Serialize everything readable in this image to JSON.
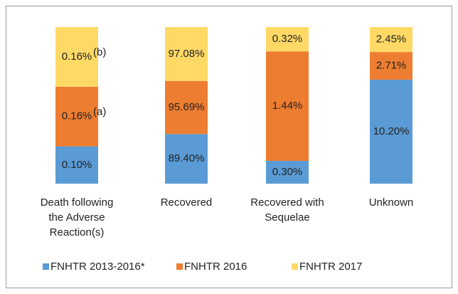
{
  "chart_data": {
    "type": "bar",
    "stacked": "percent",
    "categories": [
      [
        "Death following",
        "the Adverse",
        "Reaction(s)"
      ],
      [
        "Recovered"
      ],
      [
        "Recovered with",
        "Sequelae"
      ],
      [
        "Unknown"
      ]
    ],
    "series": [
      {
        "name": "FNHTR 2013-2016*",
        "color": "#5b9bd5",
        "values": [
          0.1,
          89.4,
          0.3,
          10.2
        ],
        "value_labels": [
          "0.10%",
          "89.40%",
          "0.30%",
          "10.20%"
        ]
      },
      {
        "name": "FNHTR 2016",
        "color": "#ed7d31",
        "values": [
          0.16,
          95.69,
          1.44,
          2.71
        ],
        "value_labels": [
          "0.16%",
          "95.69%",
          "1.44%",
          "2.71%"
        ]
      },
      {
        "name": "FNHTR 2017",
        "color": "#ffd966",
        "values": [
          0.16,
          97.08,
          0.32,
          2.45
        ],
        "value_labels": [
          "0.16%",
          "97.08%",
          "0.32%",
          "2.45%"
        ]
      }
    ],
    "annotations": [
      {
        "series": 1,
        "category": 0,
        "text": "(a)"
      },
      {
        "series": 2,
        "category": 0,
        "text": "(b)"
      }
    ],
    "legend": "bottom"
  }
}
